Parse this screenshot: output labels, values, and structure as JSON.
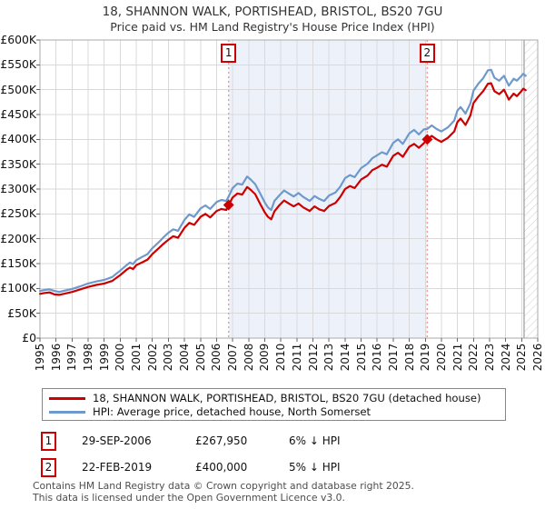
{
  "title": "18, SHANNON WALK, PORTISHEAD, BRISTOL, BS20 7GU",
  "subtitle": "Price paid vs. HM Land Registry's House Price Index (HPI)",
  "colors": {
    "red_series": "#cc0000",
    "blue_series": "#6e99cc",
    "band": "#edf2fa",
    "grid": "#d9d9d9",
    "frame": "#aaaaaa",
    "dashed_sale_line": "#f29999",
    "hatch_line": "#cccccc",
    "tick": "#666666"
  },
  "chart_data": {
    "type": "line",
    "title": "18, SHANNON WALK, PORTISHEAD, BRISTOL, BS20 7GU",
    "subtitle": "Price paid vs. HM Land Registry's House Price Index (HPI)",
    "xlabel": "",
    "ylabel": "",
    "x_ticks": [
      1995,
      1996,
      1997,
      1998,
      1999,
      2000,
      2001,
      2002,
      2003,
      2004,
      2005,
      2006,
      2007,
      2008,
      2009,
      2010,
      2011,
      2012,
      2013,
      2014,
      2015,
      2016,
      2017,
      2018,
      2019,
      2020,
      2021,
      2022,
      2023,
      2024,
      2025,
      2026
    ],
    "y_tick_labels": [
      "£0",
      "£50K",
      "£100K",
      "£150K",
      "£200K",
      "£250K",
      "£300K",
      "£350K",
      "£400K",
      "£450K",
      "£500K",
      "£550K",
      "£600K"
    ],
    "xlim": [
      1995,
      2026
    ],
    "ylim": [
      0,
      600000
    ],
    "grid": true,
    "legend_position": "bottom",
    "shaded_region": [
      2006.75,
      2019.12
    ],
    "hatched_region": [
      2025.15,
      2026
    ],
    "series": [
      {
        "name": "18, SHANNON WALK, PORTISHEAD, BRISTOL, BS20 7GU (detached house)",
        "color": "#cc0000",
        "points": [
          [
            1995.0,
            89000
          ],
          [
            1995.3,
            91000
          ],
          [
            1995.6,
            92000
          ],
          [
            1995.9,
            88000
          ],
          [
            1996.2,
            87000
          ],
          [
            1996.6,
            90000
          ],
          [
            1997.0,
            93000
          ],
          [
            1997.5,
            98000
          ],
          [
            1998.0,
            103000
          ],
          [
            1998.5,
            107000
          ],
          [
            1999.0,
            110000
          ],
          [
            1999.5,
            115000
          ],
          [
            2000.0,
            127000
          ],
          [
            2000.4,
            138000
          ],
          [
            2000.6,
            142000
          ],
          [
            2000.8,
            139000
          ],
          [
            2001.0,
            147000
          ],
          [
            2001.4,
            153000
          ],
          [
            2001.7,
            158000
          ],
          [
            2002.0,
            169000
          ],
          [
            2002.4,
            181000
          ],
          [
            2002.7,
            190000
          ],
          [
            2003.0,
            198000
          ],
          [
            2003.3,
            205000
          ],
          [
            2003.6,
            202000
          ],
          [
            2004.0,
            222000
          ],
          [
            2004.3,
            232000
          ],
          [
            2004.6,
            228000
          ],
          [
            2005.0,
            244000
          ],
          [
            2005.3,
            250000
          ],
          [
            2005.6,
            243000
          ],
          [
            2006.0,
            256000
          ],
          [
            2006.3,
            260000
          ],
          [
            2006.6,
            258000
          ],
          [
            2006.75,
            267950
          ],
          [
            2007.0,
            283000
          ],
          [
            2007.3,
            291000
          ],
          [
            2007.6,
            289000
          ],
          [
            2007.9,
            304000
          ],
          [
            2008.1,
            299000
          ],
          [
            2008.4,
            290000
          ],
          [
            2008.7,
            271000
          ],
          [
            2009.0,
            253000
          ],
          [
            2009.2,
            244000
          ],
          [
            2009.4,
            239000
          ],
          [
            2009.6,
            255000
          ],
          [
            2009.9,
            267000
          ],
          [
            2010.2,
            277000
          ],
          [
            2010.5,
            271000
          ],
          [
            2010.8,
            265000
          ],
          [
            2011.1,
            271000
          ],
          [
            2011.4,
            263000
          ],
          [
            2011.8,
            256000
          ],
          [
            2012.1,
            265000
          ],
          [
            2012.4,
            259000
          ],
          [
            2012.7,
            256000
          ],
          [
            2013.0,
            266000
          ],
          [
            2013.4,
            272000
          ],
          [
            2013.7,
            284000
          ],
          [
            2014.0,
            300000
          ],
          [
            2014.3,
            306000
          ],
          [
            2014.6,
            302000
          ],
          [
            2015.0,
            319000
          ],
          [
            2015.4,
            327000
          ],
          [
            2015.7,
            338000
          ],
          [
            2016.0,
            343000
          ],
          [
            2016.3,
            349000
          ],
          [
            2016.6,
            345000
          ],
          [
            2017.0,
            367000
          ],
          [
            2017.3,
            373000
          ],
          [
            2017.6,
            365000
          ],
          [
            2018.0,
            385000
          ],
          [
            2018.3,
            391000
          ],
          [
            2018.6,
            383000
          ],
          [
            2018.9,
            392000
          ],
          [
            2019.12,
            400000
          ],
          [
            2019.4,
            407000
          ],
          [
            2019.7,
            400000
          ],
          [
            2020.0,
            395000
          ],
          [
            2020.4,
            403000
          ],
          [
            2020.8,
            416000
          ],
          [
            2021.0,
            435000
          ],
          [
            2021.2,
            442000
          ],
          [
            2021.5,
            429000
          ],
          [
            2021.8,
            448000
          ],
          [
            2022.0,
            473000
          ],
          [
            2022.3,
            486000
          ],
          [
            2022.6,
            497000
          ],
          [
            2022.9,
            512000
          ],
          [
            2023.1,
            513000
          ],
          [
            2023.3,
            497000
          ],
          [
            2023.6,
            491000
          ],
          [
            2023.9,
            500000
          ],
          [
            2024.2,
            480000
          ],
          [
            2024.5,
            492000
          ],
          [
            2024.7,
            487000
          ],
          [
            2024.9,
            494000
          ],
          [
            2025.1,
            502000
          ],
          [
            2025.25,
            499000
          ]
        ]
      },
      {
        "name": "HPI: Average price, detached house, North Somerset",
        "color": "#6e99cc",
        "points": [
          [
            1995.0,
            95000
          ],
          [
            1995.3,
            97000
          ],
          [
            1995.6,
            98000
          ],
          [
            1995.9,
            95000
          ],
          [
            1996.2,
            93000
          ],
          [
            1996.6,
            96000
          ],
          [
            1997.0,
            99000
          ],
          [
            1997.5,
            104000
          ],
          [
            1998.0,
            110000
          ],
          [
            1998.5,
            114000
          ],
          [
            1999.0,
            117000
          ],
          [
            1999.5,
            123000
          ],
          [
            2000.0,
            136000
          ],
          [
            2000.4,
            147000
          ],
          [
            2000.6,
            152000
          ],
          [
            2000.8,
            149000
          ],
          [
            2001.0,
            157000
          ],
          [
            2001.4,
            164000
          ],
          [
            2001.7,
            169000
          ],
          [
            2002.0,
            181000
          ],
          [
            2002.4,
            193000
          ],
          [
            2002.7,
            203000
          ],
          [
            2003.0,
            212000
          ],
          [
            2003.3,
            219000
          ],
          [
            2003.6,
            216000
          ],
          [
            2004.0,
            238000
          ],
          [
            2004.3,
            249000
          ],
          [
            2004.6,
            244000
          ],
          [
            2005.0,
            261000
          ],
          [
            2005.3,
            267000
          ],
          [
            2005.6,
            260000
          ],
          [
            2006.0,
            274000
          ],
          [
            2006.3,
            278000
          ],
          [
            2006.6,
            276000
          ],
          [
            2006.75,
            285000
          ],
          [
            2007.0,
            302000
          ],
          [
            2007.3,
            311000
          ],
          [
            2007.6,
            309000
          ],
          [
            2007.9,
            325000
          ],
          [
            2008.1,
            320000
          ],
          [
            2008.4,
            310000
          ],
          [
            2008.7,
            292000
          ],
          [
            2009.0,
            273000
          ],
          [
            2009.2,
            263000
          ],
          [
            2009.4,
            258000
          ],
          [
            2009.6,
            276000
          ],
          [
            2009.9,
            287000
          ],
          [
            2010.2,
            297000
          ],
          [
            2010.5,
            291000
          ],
          [
            2010.8,
            285000
          ],
          [
            2011.1,
            292000
          ],
          [
            2011.4,
            284000
          ],
          [
            2011.8,
            276000
          ],
          [
            2012.1,
            286000
          ],
          [
            2012.4,
            280000
          ],
          [
            2012.7,
            276000
          ],
          [
            2013.0,
            287000
          ],
          [
            2013.4,
            293000
          ],
          [
            2013.7,
            305000
          ],
          [
            2014.0,
            322000
          ],
          [
            2014.3,
            328000
          ],
          [
            2014.6,
            324000
          ],
          [
            2015.0,
            342000
          ],
          [
            2015.4,
            351000
          ],
          [
            2015.7,
            362000
          ],
          [
            2016.0,
            368000
          ],
          [
            2016.3,
            374000
          ],
          [
            2016.6,
            370000
          ],
          [
            2017.0,
            393000
          ],
          [
            2017.3,
            400000
          ],
          [
            2017.6,
            391000
          ],
          [
            2018.0,
            412000
          ],
          [
            2018.3,
            419000
          ],
          [
            2018.6,
            410000
          ],
          [
            2018.9,
            420000
          ],
          [
            2019.12,
            421000
          ],
          [
            2019.4,
            428000
          ],
          [
            2019.7,
            421000
          ],
          [
            2020.0,
            416000
          ],
          [
            2020.4,
            424000
          ],
          [
            2020.8,
            438000
          ],
          [
            2021.0,
            458000
          ],
          [
            2021.2,
            465000
          ],
          [
            2021.5,
            452000
          ],
          [
            2021.8,
            472000
          ],
          [
            2022.0,
            498000
          ],
          [
            2022.3,
            512000
          ],
          [
            2022.6,
            523000
          ],
          [
            2022.9,
            539000
          ],
          [
            2023.1,
            540000
          ],
          [
            2023.3,
            524000
          ],
          [
            2023.6,
            518000
          ],
          [
            2023.9,
            528000
          ],
          [
            2024.2,
            508000
          ],
          [
            2024.5,
            522000
          ],
          [
            2024.7,
            518000
          ],
          [
            2024.9,
            525000
          ],
          [
            2025.1,
            532000
          ],
          [
            2025.25,
            528000
          ]
        ]
      }
    ],
    "sales": [
      {
        "label": "1",
        "date": "29-SEP-2006",
        "date_decimal": 2006.75,
        "price": 267950,
        "delta_vs_hpi": "6% ↓ HPI"
      },
      {
        "label": "2",
        "date": "22-FEB-2019",
        "date_decimal": 2019.12,
        "price": 400000,
        "delta_vs_hpi": "5% ↓ HPI"
      }
    ]
  },
  "annotations": [
    {
      "num": "1",
      "date": "29-SEP-2006",
      "price": "£267,950",
      "delta": "6% ↓ HPI"
    },
    {
      "num": "2",
      "date": "22-FEB-2019",
      "price": "£400,000",
      "delta": "5% ↓ HPI"
    }
  ],
  "footer": {
    "line1": "Contains HM Land Registry data © Crown copyright and database right 2025.",
    "line2": "This data is licensed under the Open Government Licence v3.0."
  }
}
